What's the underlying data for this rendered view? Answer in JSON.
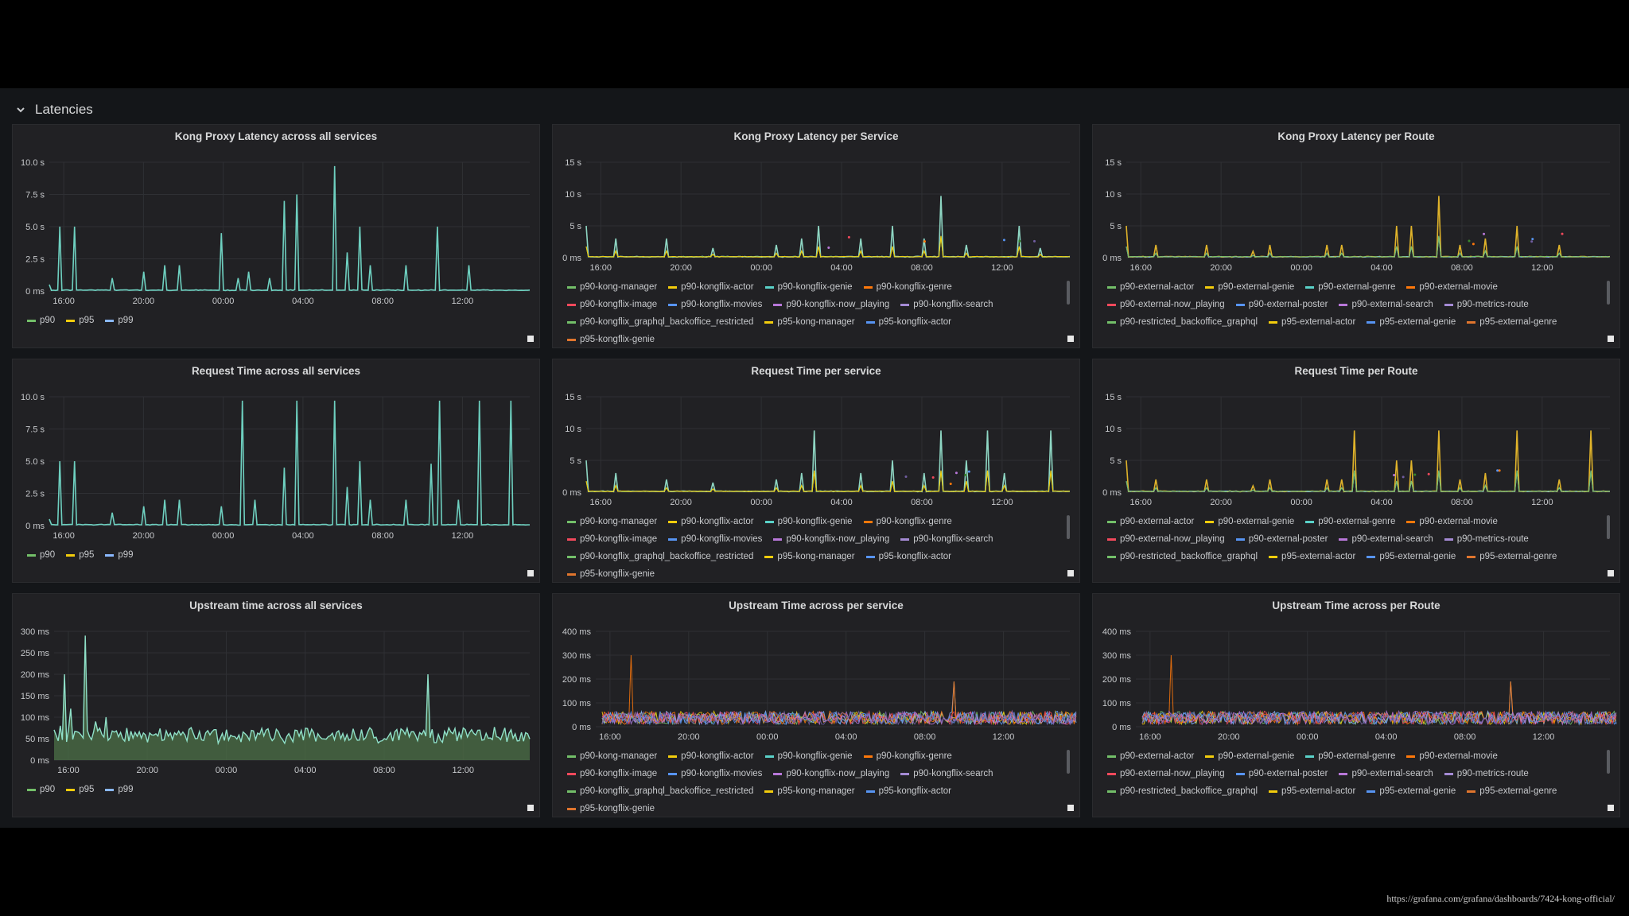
{
  "row": {
    "title": "Latencies"
  },
  "footer": {
    "url": "https://grafana.com/grafana/dashboards/7424-kong-official/"
  },
  "x_ticks": [
    "16:00",
    "20:00",
    "00:00",
    "04:00",
    "08:00",
    "12:00"
  ],
  "colors": [
    "#73bf69",
    "#f2cc0c",
    "#8ab8ff",
    "#ff780a",
    "#f2495c",
    "#5794f2",
    "#b877d9",
    "#705da0",
    "#37872d",
    "#fade2a",
    "#3274d9",
    "#e0752d",
    "#5ad1c8"
  ],
  "panels": [
    {
      "title": "Kong Proxy Latency across all services",
      "legend": [
        "p90",
        "p95",
        "p99"
      ],
      "chart_data": {
        "type": "line",
        "y_ticks": [
          "10.0 s",
          "7.5 s",
          "5.0 s",
          "2.5 s",
          "0 ms"
        ],
        "ylim": [
          0,
          10
        ],
        "unit": "s",
        "x_ticks": [
          "16:00",
          "20:00",
          "00:00",
          "04:00",
          "08:00",
          "12:00"
        ],
        "series_style": "single",
        "spikes": [
          [
            0,
            0.5
          ],
          [
            5,
            5
          ],
          [
            12,
            5
          ],
          [
            30,
            1
          ],
          [
            45,
            1.5
          ],
          [
            55,
            2
          ],
          [
            62,
            2
          ],
          [
            82,
            4.5
          ],
          [
            90,
            1
          ],
          [
            95,
            1.5
          ],
          [
            105,
            1
          ],
          [
            112,
            7
          ],
          [
            118,
            7.5
          ],
          [
            136,
            9.7
          ],
          [
            142,
            3
          ],
          [
            148,
            5
          ],
          [
            153,
            2
          ],
          [
            170,
            2
          ],
          [
            185,
            5
          ],
          [
            200,
            2
          ]
        ],
        "base": 0.05
      }
    },
    {
      "title": "Kong Proxy Latency per Service",
      "legend": [
        "p90-kong-manager",
        "p90-kongflix-actor",
        "p90-kongflix-genie",
        "p90-kongflix-genre",
        "p90-kongflix-image",
        "p90-kongflix-movies",
        "p90-kongflix-now_playing",
        "p90-kongflix-search",
        "p90-kongflix_graphql_backoffice_restricted",
        "p95-kong-manager",
        "p95-kongflix-actor",
        "p95-kongflix-genie"
      ],
      "chart_data": {
        "type": "line",
        "y_ticks": [
          "15 s",
          "10 s",
          "5 s",
          "0 ms"
        ],
        "ylim": [
          0,
          15
        ],
        "unit": "s",
        "x_ticks": [
          "16:00",
          "20:00",
          "00:00",
          "04:00",
          "08:00",
          "12:00"
        ],
        "series_style": "multi",
        "spikes": [
          [
            0,
            5
          ],
          [
            14,
            3
          ],
          [
            38,
            3
          ],
          [
            60,
            1.5
          ],
          [
            90,
            2
          ],
          [
            102,
            3
          ],
          [
            110,
            5
          ],
          [
            130,
            3
          ],
          [
            145,
            5
          ],
          [
            160,
            3
          ],
          [
            168,
            9.7
          ],
          [
            180,
            2
          ],
          [
            205,
            5
          ],
          [
            215,
            1.5
          ]
        ],
        "base": 0.1
      }
    },
    {
      "title": "Kong Proxy Latency per Route",
      "legend": [
        "p90-external-actor",
        "p90-external-genie",
        "p90-external-genre",
        "p90-external-movie",
        "p90-external-now_playing",
        "p90-external-poster",
        "p90-external-search",
        "p90-metrics-route",
        "p90-restricted_backoffice_graphql",
        "p95-external-actor",
        "p95-external-genie",
        "p95-external-genre"
      ],
      "chart_data": {
        "type": "line",
        "y_ticks": [
          "15 s",
          "10 s",
          "5 s",
          "0 ms"
        ],
        "ylim": [
          0,
          15
        ],
        "unit": "s",
        "x_ticks": [
          "16:00",
          "20:00",
          "00:00",
          "04:00",
          "08:00",
          "12:00"
        ],
        "series_style": "route",
        "spikes": [
          [
            0,
            5
          ],
          [
            14,
            2
          ],
          [
            38,
            2
          ],
          [
            60,
            1
          ],
          [
            68,
            2
          ],
          [
            95,
            2
          ],
          [
            102,
            2
          ],
          [
            128,
            5
          ],
          [
            135,
            5
          ],
          [
            148,
            9.7
          ],
          [
            158,
            2
          ],
          [
            170,
            3
          ],
          [
            185,
            5
          ],
          [
            205,
            2
          ]
        ],
        "base": 0.1
      }
    },
    {
      "title": "Request Time across all services",
      "legend": [
        "p90",
        "p95",
        "p99"
      ],
      "chart_data": {
        "type": "line",
        "y_ticks": [
          "10.0 s",
          "7.5 s",
          "5.0 s",
          "2.5 s",
          "0 ms"
        ],
        "ylim": [
          0,
          10
        ],
        "unit": "s",
        "x_ticks": [
          "16:00",
          "20:00",
          "00:00",
          "04:00",
          "08:00",
          "12:00"
        ],
        "series_style": "single",
        "spikes": [
          [
            0,
            0.5
          ],
          [
            5,
            5
          ],
          [
            12,
            5
          ],
          [
            30,
            1
          ],
          [
            45,
            1.5
          ],
          [
            55,
            2
          ],
          [
            62,
            2
          ],
          [
            82,
            1.5
          ],
          [
            92,
            9.7
          ],
          [
            98,
            2
          ],
          [
            112,
            4.5
          ],
          [
            118,
            9.7
          ],
          [
            136,
            9.7
          ],
          [
            142,
            3
          ],
          [
            148,
            5
          ],
          [
            153,
            2
          ],
          [
            170,
            2
          ],
          [
            182,
            4.8
          ],
          [
            186,
            9.7
          ],
          [
            195,
            2
          ],
          [
            205,
            9.7
          ],
          [
            220,
            9.7
          ]
        ],
        "base": 0.05
      }
    },
    {
      "title": "Request Time per service",
      "legend": [
        "p90-kong-manager",
        "p90-kongflix-actor",
        "p90-kongflix-genie",
        "p90-kongflix-genre",
        "p90-kongflix-image",
        "p90-kongflix-movies",
        "p90-kongflix-now_playing",
        "p90-kongflix-search",
        "p90-kongflix_graphql_backoffice_restricted",
        "p95-kong-manager",
        "p95-kongflix-actor",
        "p95-kongflix-genie"
      ],
      "chart_data": {
        "type": "line",
        "y_ticks": [
          "15 s",
          "10 s",
          "5 s",
          "0 ms"
        ],
        "ylim": [
          0,
          15
        ],
        "unit": "s",
        "x_ticks": [
          "16:00",
          "20:00",
          "00:00",
          "04:00",
          "08:00",
          "12:00"
        ],
        "series_style": "multi",
        "spikes": [
          [
            0,
            5
          ],
          [
            14,
            3
          ],
          [
            38,
            2
          ],
          [
            60,
            1.5
          ],
          [
            90,
            2
          ],
          [
            102,
            3
          ],
          [
            108,
            9.7
          ],
          [
            130,
            3
          ],
          [
            145,
            5
          ],
          [
            160,
            3
          ],
          [
            168,
            9.7
          ],
          [
            180,
            5
          ],
          [
            190,
            9.7
          ],
          [
            198,
            3
          ],
          [
            220,
            9.7
          ]
        ],
        "base": 0.1
      }
    },
    {
      "title": "Request Time per Route",
      "legend": [
        "p90-external-actor",
        "p90-external-genie",
        "p90-external-genre",
        "p90-external-movie",
        "p90-external-now_playing",
        "p90-external-poster",
        "p90-external-search",
        "p90-metrics-route",
        "p90-restricted_backoffice_graphql",
        "p95-external-actor",
        "p95-external-genie",
        "p95-external-genre"
      ],
      "chart_data": {
        "type": "line",
        "y_ticks": [
          "15 s",
          "10 s",
          "5 s",
          "0 ms"
        ],
        "ylim": [
          0,
          15
        ],
        "unit": "s",
        "x_ticks": [
          "16:00",
          "20:00",
          "00:00",
          "04:00",
          "08:00",
          "12:00"
        ],
        "series_style": "route",
        "spikes": [
          [
            0,
            5
          ],
          [
            14,
            2
          ],
          [
            38,
            2
          ],
          [
            60,
            1
          ],
          [
            68,
            2
          ],
          [
            95,
            2
          ],
          [
            102,
            2
          ],
          [
            108,
            9.7
          ],
          [
            128,
            5
          ],
          [
            135,
            5
          ],
          [
            148,
            9.7
          ],
          [
            158,
            2
          ],
          [
            170,
            3
          ],
          [
            185,
            9.7
          ],
          [
            205,
            2
          ],
          [
            220,
            9.7
          ]
        ],
        "base": 0.1
      }
    },
    {
      "title": "Upstream time across all services",
      "legend": [
        "p90",
        "p95",
        "p99"
      ],
      "chart_data": {
        "type": "area",
        "y_ticks": [
          "300 ms",
          "250 ms",
          "200 ms",
          "150 ms",
          "100 ms",
          "50 ms",
          "0 ms"
        ],
        "ylim": [
          0,
          300
        ],
        "unit": "ms",
        "x_ticks": [
          "16:00",
          "20:00",
          "00:00",
          "04:00",
          "08:00",
          "12:00"
        ],
        "series_style": "area",
        "spikes": [
          [
            3,
            80
          ],
          [
            5,
            200
          ],
          [
            8,
            120
          ],
          [
            15,
            290
          ],
          [
            20,
            90
          ],
          [
            25,
            100
          ],
          [
            180,
            200
          ],
          [
            205,
            70
          ]
        ],
        "base": 55
      }
    },
    {
      "title": "Upstream Time across per service",
      "legend": [
        "p90-kong-manager",
        "p90-kongflix-actor",
        "p90-kongflix-genie",
        "p90-kongflix-genre",
        "p90-kongflix-image",
        "p90-kongflix-movies",
        "p90-kongflix-now_playing",
        "p90-kongflix-search",
        "p90-kongflix_graphql_backoffice_restricted",
        "p95-kong-manager",
        "p95-kongflix-actor",
        "p95-kongflix-genie"
      ],
      "chart_data": {
        "type": "line",
        "y_ticks": [
          "400 ms",
          "300 ms",
          "200 ms",
          "100 ms",
          "0 ms"
        ],
        "ylim": [
          0,
          400
        ],
        "unit": "ms",
        "x_ticks": [
          "16:00",
          "20:00",
          "00:00",
          "04:00",
          "08:00",
          "12:00"
        ],
        "series_style": "noise",
        "spikes": [
          [
            14,
            300
          ],
          [
            170,
            190
          ]
        ],
        "base": 40
      }
    },
    {
      "title": "Upstream Time across per Route",
      "legend": [
        "p90-external-actor",
        "p90-external-genie",
        "p90-external-genre",
        "p90-external-movie",
        "p90-external-now_playing",
        "p90-external-poster",
        "p90-external-search",
        "p90-metrics-route",
        "p90-restricted_backoffice_graphql",
        "p95-external-actor",
        "p95-external-genie",
        "p95-external-genre"
      ],
      "chart_data": {
        "type": "line",
        "y_ticks": [
          "400 ms",
          "300 ms",
          "200 ms",
          "100 ms",
          "0 ms"
        ],
        "ylim": [
          0,
          400
        ],
        "unit": "ms",
        "x_ticks": [
          "16:00",
          "20:00",
          "00:00",
          "04:00",
          "08:00",
          "12:00"
        ],
        "series_style": "noise",
        "spikes": [
          [
            14,
            300
          ],
          [
            178,
            190
          ]
        ],
        "base": 40
      }
    }
  ]
}
